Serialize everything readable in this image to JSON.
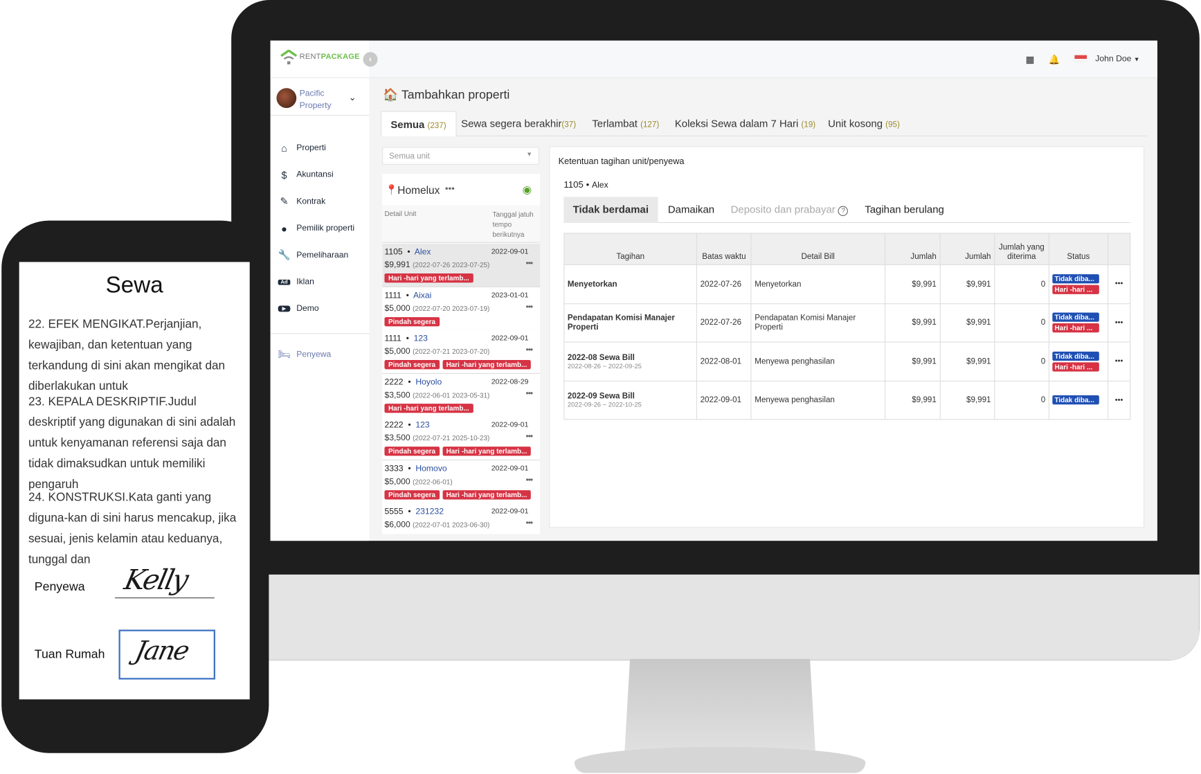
{
  "app": {
    "logo_part1": "RENT",
    "logo_part2": "PACKAGE",
    "user": "John Doe",
    "property": "Pacific Property",
    "property_line1": "Pacific",
    "property_line2": "Property"
  },
  "sidebar": {
    "items": [
      {
        "label": "Properti",
        "icon": "home-icon",
        "glyph": "⌂"
      },
      {
        "label": "Akuntansi",
        "icon": "dollar-icon",
        "glyph": "$"
      },
      {
        "label": "Kontrak",
        "icon": "contract-icon",
        "glyph": "✎"
      },
      {
        "label": "Pemilik properti",
        "icon": "user-icon",
        "glyph": "👤"
      },
      {
        "label": "Pemeliharaan",
        "icon": "wrench-icon",
        "glyph": "🔧"
      },
      {
        "label": "Iklan",
        "icon": "ad-icon",
        "glyph": "Ad"
      },
      {
        "label": "Demo",
        "icon": "play-icon",
        "glyph": "▶"
      }
    ],
    "tenant": {
      "label": "Penyewa",
      "icon": "bed-icon"
    }
  },
  "page": {
    "title": "Tambahkan properti",
    "tabs": [
      {
        "label": "Semua",
        "count": "(237)"
      },
      {
        "label": "Sewa segera berakhir",
        "count": "(37)"
      },
      {
        "label": "Terlambat",
        "count": "(127)"
      },
      {
        "label": "Koleksi Sewa dalam 7 Hari",
        "count": "(19)"
      },
      {
        "label": "Unit kosong",
        "count": "(95)"
      }
    ]
  },
  "units": {
    "select_placeholder": "Semua unit",
    "property": "Homelux",
    "col_detail": "Detail Unit",
    "col_due": "Tanggal jatuh tempo berikutnya",
    "rows": [
      {
        "unit": "1105",
        "tenant": "Alex",
        "amount": "$9,991",
        "range": "(2022-07-26 2023-07-25)",
        "due": "2022-09-01",
        "badges": [
          "Hari -hari yang terlamb..."
        ]
      },
      {
        "unit": "1111",
        "tenant": "Aixai",
        "amount": "$5,000",
        "range": "(2022-07-20 2023-07-19)",
        "due": "2023-01-01",
        "badges": [
          "Pindah segera"
        ]
      },
      {
        "unit": "1111",
        "tenant": "123",
        "amount": "$5,000",
        "range": "(2022-07-21 2023-07-20)",
        "due": "2022-09-01",
        "badges": [
          "Pindah segera",
          "Hari -hari yang terlamb..."
        ]
      },
      {
        "unit": "2222",
        "tenant": "Hoyolo",
        "amount": "$3,500",
        "range": "(2022-06-01 2023-05-31)",
        "due": "2022-08-29",
        "badges": [
          "Hari -hari yang terlamb..."
        ]
      },
      {
        "unit": "2222",
        "tenant": "123",
        "amount": "$3,500",
        "range": "(2022-07-21 2025-10-23)",
        "due": "2022-09-01",
        "badges": [
          "Pindah segera",
          "Hari -hari yang terlamb..."
        ]
      },
      {
        "unit": "3333",
        "tenant": "Homovo",
        "amount": "$5,000",
        "range": "(2022-06-01)",
        "due": "2022-09-01",
        "badges": [
          "Pindah segera",
          "Hari -hari yang terlamb..."
        ]
      },
      {
        "unit": "5555",
        "tenant": "231232",
        "amount": "$6,000",
        "range": "(2022-07-01 2023-06-30)",
        "due": "2022-09-01",
        "badges": []
      }
    ]
  },
  "bills": {
    "title": "Ketentuan tagihan unit/penyewa",
    "unit": "1105",
    "tenant": "Alex",
    "tabs": [
      "Tidak berdamai",
      "Damaikan",
      "Deposito dan prabayar",
      "Tagihan berulang"
    ],
    "columns": [
      "Tagihan",
      "Batas waktu",
      "Detail Bill",
      "Jumlah",
      "Jumlah",
      "Jumlah yang diterima",
      "Status"
    ],
    "rows": [
      {
        "name": "Menyetorkan",
        "sub": "",
        "due": "2022-07-26",
        "detail": "Menyetorkan",
        "amount": "$9,991",
        "amount2": "$9,991",
        "received": "0",
        "status": [
          "Tidak diba...",
          "Hari -hari ..."
        ]
      },
      {
        "name": "Pendapatan Komisi Manajer Properti",
        "sub": "",
        "due": "2022-07-26",
        "detail": "Pendapatan Komisi Manajer Properti",
        "amount": "$9,991",
        "amount2": "$9,991",
        "received": "0",
        "status": [
          "Tidak diba...",
          "Hari -hari ..."
        ]
      },
      {
        "name": "2022-08 Sewa Bill",
        "sub": "2022-08-26 ~ 2022-09-25",
        "due": "2022-08-01",
        "detail": "Menyewa penghasilan",
        "amount": "$9,991",
        "amount2": "$9,991",
        "received": "0",
        "status": [
          "Tidak diba...",
          "Hari -hari ..."
        ]
      },
      {
        "name": "2022-09 Sewa Bill",
        "sub": "2022-09-26 ~ 2022-10-25",
        "due": "2022-09-01",
        "detail": "Menyewa penghasilan",
        "amount": "$9,991",
        "amount2": "$9,991",
        "received": "0",
        "status": [
          "Tidak diba..."
        ]
      }
    ]
  },
  "phone": {
    "title": "Sewa",
    "clauses": [
      "22. EFEK MENGIKAT.Perjanjian, kewajiban, dan ketentuan yang terkandung di sini akan mengikat dan diberlakukan untuk",
      "23. KEPALA DESKRIPTIF.Judul deskriptif yang digunakan di sini adalah untuk kenyamanan referensi saja dan tidak dimaksudkan untuk memiliki pengaruh",
      "24. KONSTRUKSI.Kata ganti yang diguna-kan di sini harus mencakup, jika sesuai, jenis kelamin atau keduanya, tunggal dan"
    ],
    "tenant_label": "Penyewa",
    "landlord_label": "Tuan Rumah",
    "tenant_signature": "Kelly",
    "landlord_signature": "Jane"
  },
  "colors": {
    "accent_green": "#6cc04a",
    "badge_red": "#d63344",
    "status_blue": "#1f4fb3",
    "link_blue": "#2b4ea0"
  }
}
